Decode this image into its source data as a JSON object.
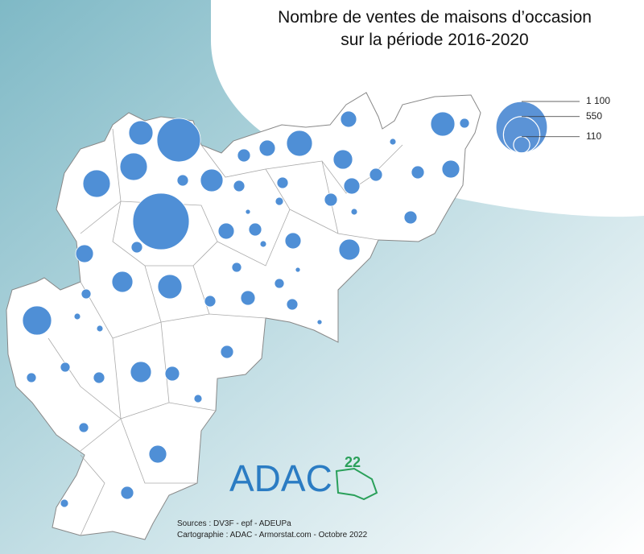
{
  "title_lines": [
    "Nombre de ventes de maisons d’occasion",
    "sur la période 2016-2020"
  ],
  "legend": {
    "ticks": [
      {
        "value": 1100,
        "label": "1 100"
      },
      550,
      110
    ]
  },
  "circles": {
    "values": [
      783,
      1316,
      242,
      310,
      310,
      275,
      107,
      242,
      39,
      107,
      69,
      211,
      53,
      155,
      69,
      69,
      130,
      17,
      53,
      53,
      107,
      69,
      27,
      10,
      17,
      69,
      107,
      69,
      107,
      17,
      182,
      130,
      53,
      182,
      242,
      39,
      39,
      10,
      39,
      87,
      53,
      53,
      349,
      17,
      17,
      10,
      69,
      39,
      182,
      87,
      53,
      39,
      27,
      39,
      130,
      69,
      27
    ]
  },
  "logo": {
    "text": "ADAC",
    "superscript": "22"
  },
  "sources": "Sources : DV3F - epf - ADEUPa",
  "credits": "Cartographie : ADAC - Armorstat.com - Octobre 2022"
}
